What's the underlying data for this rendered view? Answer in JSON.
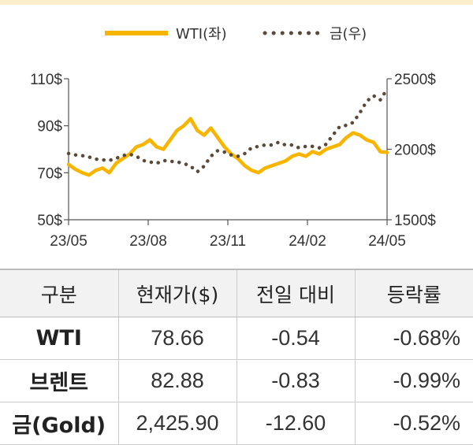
{
  "chart_data": {
    "type": "line",
    "x_ticks": [
      "23/05",
      "23/08",
      "23/11",
      "24/02",
      "24/05"
    ],
    "y_left_ticks": [
      "110$",
      "90$",
      "70$",
      "50$"
    ],
    "y_left_range": [
      50,
      110
    ],
    "y_right_ticks": [
      "2500$",
      "2000$",
      "1500$"
    ],
    "y_right_range": [
      1500,
      2500
    ],
    "grid": false,
    "legend_position": "top-center",
    "series": [
      {
        "name": "WTI(좌)",
        "axis": "left",
        "style": "solid",
        "color": "#f7b500",
        "x": [
          "23/05",
          "23/05",
          "23/05",
          "23/06",
          "23/06",
          "23/06",
          "23/06",
          "23/07",
          "23/07",
          "23/07",
          "23/07",
          "23/08",
          "23/08",
          "23/08",
          "23/08",
          "23/09",
          "23/09",
          "23/09",
          "23/09",
          "23/10",
          "23/10",
          "23/10",
          "23/10",
          "23/11",
          "23/11",
          "23/11",
          "23/11",
          "23/12",
          "23/12",
          "23/12",
          "23/12",
          "24/01",
          "24/01",
          "24/01",
          "24/01",
          "24/02",
          "24/02",
          "24/02",
          "24/02",
          "24/03",
          "24/03",
          "24/03",
          "24/03",
          "24/04",
          "24/04",
          "24/04",
          "24/04",
          "24/05"
        ],
        "values": [
          73.5,
          71.5,
          70,
          69,
          71,
          72,
          70,
          74,
          76,
          78,
          81,
          82,
          84,
          81,
          80,
          84,
          88,
          90,
          93,
          88,
          86,
          89,
          85,
          81,
          78,
          76,
          73,
          71,
          70,
          72,
          73,
          74,
          75,
          77,
          78,
          77,
          79,
          78,
          80,
          81,
          82,
          85,
          87,
          86,
          84,
          83,
          79,
          78.66
        ]
      },
      {
        "name": "금(우)",
        "axis": "right",
        "style": "dotted",
        "color": "#5a4a3a",
        "x": [
          "23/05",
          "23/05",
          "23/05",
          "23/06",
          "23/06",
          "23/06",
          "23/06",
          "23/07",
          "23/07",
          "23/07",
          "23/07",
          "23/08",
          "23/08",
          "23/08",
          "23/08",
          "23/09",
          "23/09",
          "23/09",
          "23/09",
          "23/10",
          "23/10",
          "23/10",
          "23/10",
          "23/11",
          "23/11",
          "23/11",
          "23/11",
          "23/12",
          "23/12",
          "23/12",
          "23/12",
          "24/01",
          "24/01",
          "24/01",
          "24/01",
          "24/02",
          "24/02",
          "24/02",
          "24/02",
          "24/03",
          "24/03",
          "24/03",
          "24/03",
          "24/04",
          "24/04",
          "24/04",
          "24/04",
          "24/05"
        ],
        "values": [
          1970,
          1960,
          1955,
          1945,
          1930,
          1925,
          1920,
          1935,
          1955,
          1965,
          1950,
          1920,
          1910,
          1900,
          1920,
          1915,
          1910,
          1900,
          1880,
          1840,
          1880,
          1950,
          1990,
          1980,
          1960,
          1950,
          1970,
          2010,
          2020,
          2030,
          2030,
          2050,
          2030,
          2030,
          2010,
          2020,
          2020,
          2010,
          2035,
          2100,
          2160,
          2170,
          2190,
          2260,
          2340,
          2380,
          2350,
          2425.9
        ]
      }
    ]
  },
  "table": {
    "headers": [
      "구분",
      "현재가($)",
      "전일 대비",
      "등락률"
    ],
    "rows": [
      {
        "name": "WTI",
        "price": "78.66",
        "change": "-0.54",
        "rate": "-0.68%"
      },
      {
        "name": "브렌트",
        "price": "82.88",
        "change": "-0.83",
        "rate": "-0.99%"
      },
      {
        "name": "금(Gold)",
        "price": "2,425.90",
        "change": "-12.60",
        "rate": "-0.52%"
      }
    ]
  }
}
